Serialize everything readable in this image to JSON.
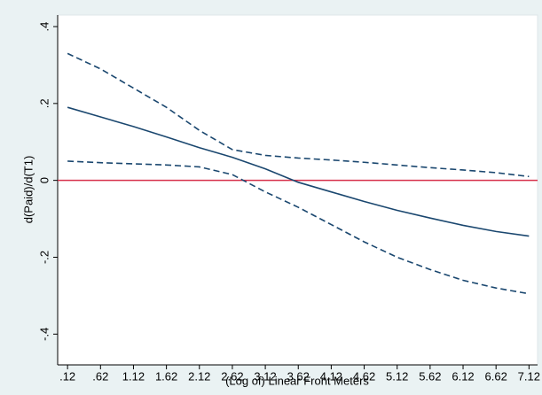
{
  "chart_data": {
    "type": "line",
    "x_label": "(Log of) Linear Front Meters",
    "y_label": "d(Paid)/d(T1)",
    "x": [
      0.12,
      0.62,
      1.12,
      1.62,
      2.12,
      2.62,
      3.12,
      3.62,
      4.12,
      4.62,
      5.12,
      5.62,
      6.12,
      6.62,
      7.12
    ],
    "series": [
      {
        "color": "#1a476f",
        "dash": "solid",
        "values": [
          0.19,
          0.165,
          0.14,
          0.113,
          0.085,
          0.06,
          0.03,
          -0.005,
          -0.03,
          -0.055,
          -0.078,
          -0.098,
          -0.117,
          -0.133,
          -0.145
        ]
      },
      {
        "color": "#1a476f",
        "dash": "dashed",
        "values": [
          0.33,
          0.29,
          0.24,
          0.19,
          0.13,
          0.08,
          0.065,
          0.058,
          0.053,
          0.047,
          0.04,
          0.033,
          0.027,
          0.02,
          0.01
        ]
      },
      {
        "color": "#1a476f",
        "dash": "dashed",
        "values": [
          0.05,
          0.046,
          0.043,
          0.04,
          0.035,
          0.015,
          -0.03,
          -0.07,
          -0.115,
          -0.16,
          -0.2,
          -0.232,
          -0.26,
          -0.28,
          -0.295
        ]
      }
    ],
    "reference_line": {
      "value": 0,
      "color": "#d6304a"
    },
    "xlim": [
      -0.03,
      7.25
    ],
    "ylim": [
      -0.48,
      0.43
    ],
    "xticks": [
      {
        "value": 0.12,
        "label": ".12"
      },
      {
        "value": 0.62,
        "label": ".62"
      },
      1.12,
      1.62,
      2.12,
      2.62,
      3.12,
      3.62,
      4.12,
      4.62,
      5.12,
      5.62,
      6.12,
      6.62,
      7.12
    ],
    "yticks": [
      {
        "value": -0.4,
        "label": "-.4"
      },
      {
        "value": -0.2,
        "label": "-.2"
      },
      0,
      {
        "value": 0.2,
        "label": ".2"
      },
      {
        "value": 0.4,
        "label": ".4"
      }
    ],
    "grid": false
  }
}
